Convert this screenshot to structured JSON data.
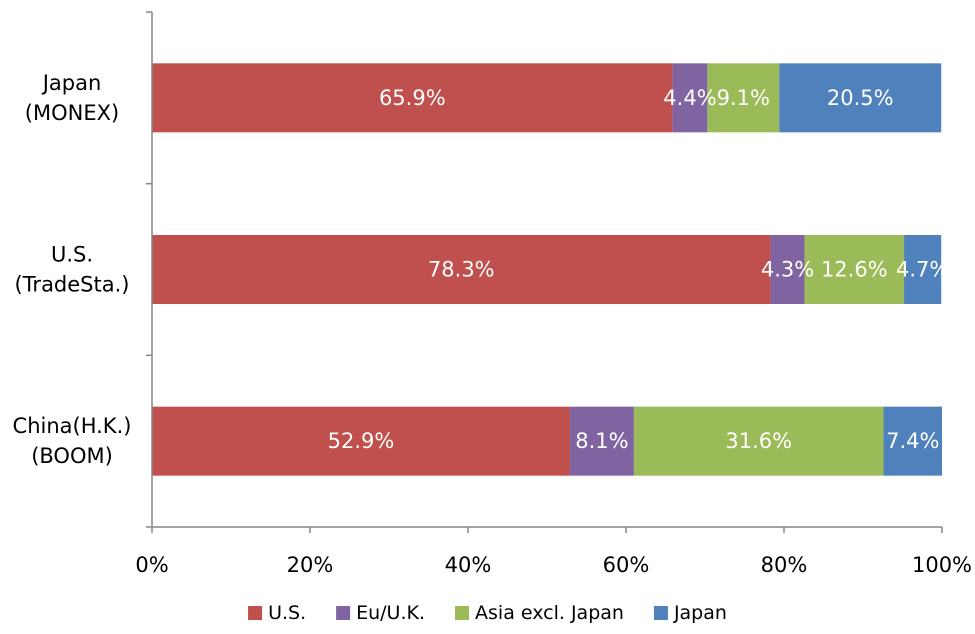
{
  "chart_data": {
    "type": "bar",
    "orientation": "horizontal",
    "stacked": "percent",
    "title": "",
    "xlabel": "",
    "ylabel": "",
    "xlim": [
      0,
      100
    ],
    "x_ticks": [
      "0%",
      "20%",
      "40%",
      "60%",
      "80%",
      "100%"
    ],
    "categories": [
      [
        "Japan",
        "(MONEX)"
      ],
      [
        "U.S.",
        "(TradeSta.)"
      ],
      [
        "China(H.K.)",
        "(BOOM)"
      ]
    ],
    "series": [
      {
        "name": "U.S.",
        "color": "#C0504D",
        "values": [
          65.9,
          78.3,
          52.9
        ],
        "labels": [
          "65.9%",
          "78.3%",
          "52.9%"
        ]
      },
      {
        "name": "Eu/U.K.",
        "color": "#8064A2",
        "values": [
          4.4,
          4.3,
          8.1
        ],
        "labels": [
          "4.4%",
          "4.3%",
          "8.1%"
        ]
      },
      {
        "name": "Asia excl. Japan",
        "color": "#9BBB59",
        "values": [
          9.1,
          12.6,
          31.6
        ],
        "labels": [
          "9.1%",
          "12.6%",
          "31.6%"
        ]
      },
      {
        "name": "Japan",
        "color": "#4F81BD",
        "values": [
          20.5,
          4.7,
          7.4
        ],
        "labels": [
          "20.5%",
          "4.7%",
          "7.4%"
        ]
      }
    ],
    "grid": false,
    "legend_position": "bottom"
  }
}
